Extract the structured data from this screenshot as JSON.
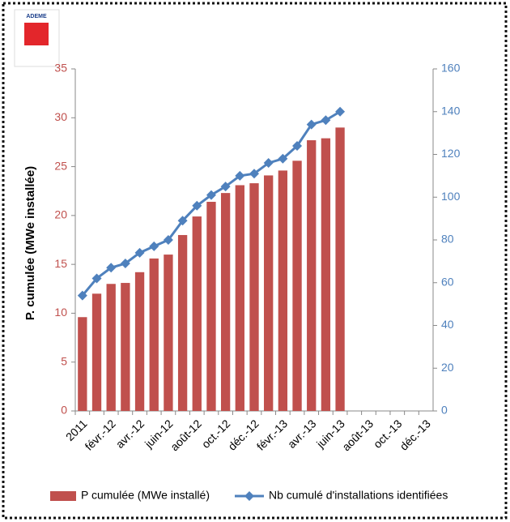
{
  "chart_data": {
    "type": "bar_line",
    "logo": "ADEME",
    "y_label": "P. cumulée (MWe installée)",
    "categories": [
      "2011",
      null,
      "févr.-12",
      null,
      "avr.-12",
      null,
      "juin-12",
      null,
      "août-12",
      null,
      "oct.-12",
      null,
      "déc.-12",
      null,
      "févr.-13",
      null,
      "avr.-13",
      null,
      "juin-13",
      null,
      "août-13",
      null,
      "oct.-13",
      null,
      "déc.-13"
    ],
    "series": [
      {
        "name": "P cumulée (MWe installé)",
        "color": "#c0504d",
        "kind": "bar",
        "values": [
          9.6,
          12,
          13,
          13.1,
          14.2,
          15.6,
          16,
          18,
          19.9,
          21.4,
          22.3,
          23.1,
          23.3,
          24.1,
          24.6,
          25.6,
          27.7,
          27.9,
          29,
          null,
          null,
          null,
          null,
          null,
          null
        ]
      },
      {
        "name": "Nb cumulé d'installations identifiées",
        "color": "#4f81bd",
        "kind": "line",
        "axis": "y2",
        "values": [
          54,
          62,
          67,
          69,
          74,
          77,
          80,
          89,
          96,
          101,
          105,
          110,
          111,
          116,
          118,
          124,
          134,
          136,
          140,
          null,
          null,
          null,
          null,
          null,
          null
        ]
      }
    ],
    "ylim": [
      0,
      35
    ],
    "yticks": [
      0,
      5,
      10,
      15,
      20,
      25,
      30,
      35
    ],
    "y2lim": [
      0,
      160
    ],
    "y2ticks": [
      0,
      20,
      40,
      60,
      80,
      100,
      120,
      140,
      160
    ],
    "legend": "bottom"
  }
}
